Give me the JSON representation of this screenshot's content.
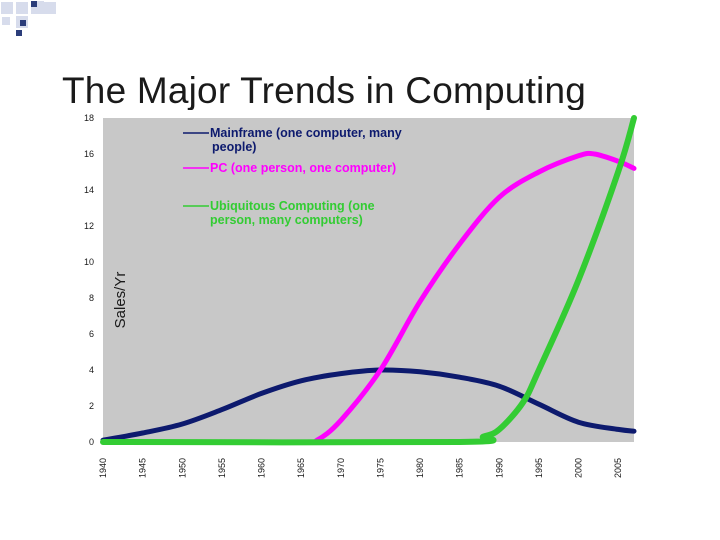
{
  "slide": {
    "title": "The Major Trends in Computing"
  },
  "colors": {
    "background": "#ffffff",
    "plot_background": "#c8c8c8",
    "deco_light": "#d7dcec",
    "deco_dark": "#2b3d7a"
  },
  "chart_data": {
    "type": "line",
    "title": "The Major Trends in Computing",
    "xlabel": "",
    "ylabel": "Sales/Yr",
    "x": [
      1940,
      1945,
      1950,
      1955,
      1960,
      1965,
      1970,
      1975,
      1980,
      1985,
      1990,
      1995,
      2000,
      2005
    ],
    "x_tick_labels": [
      "1940",
      "1945",
      "1950",
      "1955",
      "1960",
      "1965",
      "1970",
      "1975",
      "1980",
      "1985",
      "1990",
      "1995",
      "2000",
      "2005"
    ],
    "xlim": [
      1940,
      2007
    ],
    "ylim": [
      0,
      18
    ],
    "y_ticks": [
      0,
      2,
      4,
      6,
      8,
      10,
      12,
      14,
      16,
      18
    ],
    "grid": false,
    "legend_position": "top-left",
    "series": [
      {
        "name": "Mainframe (one computer, many people)",
        "legend_lines": [
          "Mainframe (one computer, many",
          "people)"
        ],
        "color": "#0d1a6e",
        "x": [
          1940,
          1945,
          1950,
          1955,
          1960,
          1965,
          1970,
          1975,
          1980,
          1985,
          1990,
          1995,
          2000,
          2005,
          2007
        ],
        "values": [
          0.1,
          0.5,
          1.0,
          1.8,
          2.7,
          3.4,
          3.8,
          4.0,
          3.9,
          3.6,
          3.1,
          2.1,
          1.1,
          0.7,
          0.6
        ]
      },
      {
        "name": "PC (one person, one computer)",
        "legend_lines": [
          "PC (one person, one computer)"
        ],
        "color": "#ff00ff",
        "x": [
          1940,
          1965,
          1967,
          1970,
          1975,
          1980,
          1985,
          1990,
          1995,
          2000,
          2002,
          2005,
          2007
        ],
        "values": [
          0,
          0,
          0.1,
          1.2,
          4.0,
          7.8,
          11.0,
          13.6,
          15.0,
          15.9,
          16.0,
          15.6,
          15.2
        ]
      },
      {
        "name": "Ubiquitous Computing (one person, many computers)",
        "legend_lines": [
          "Ubiquitous Computing (one",
          "person, many computers)"
        ],
        "color": "#33cc33",
        "x": [
          1940,
          1985,
          1988,
          1990,
          1993,
          1995,
          2000,
          2005,
          2007
        ],
        "values": [
          0,
          0,
          0.3,
          0.7,
          2.2,
          4.0,
          9.0,
          15.0,
          18.0
        ]
      }
    ]
  }
}
